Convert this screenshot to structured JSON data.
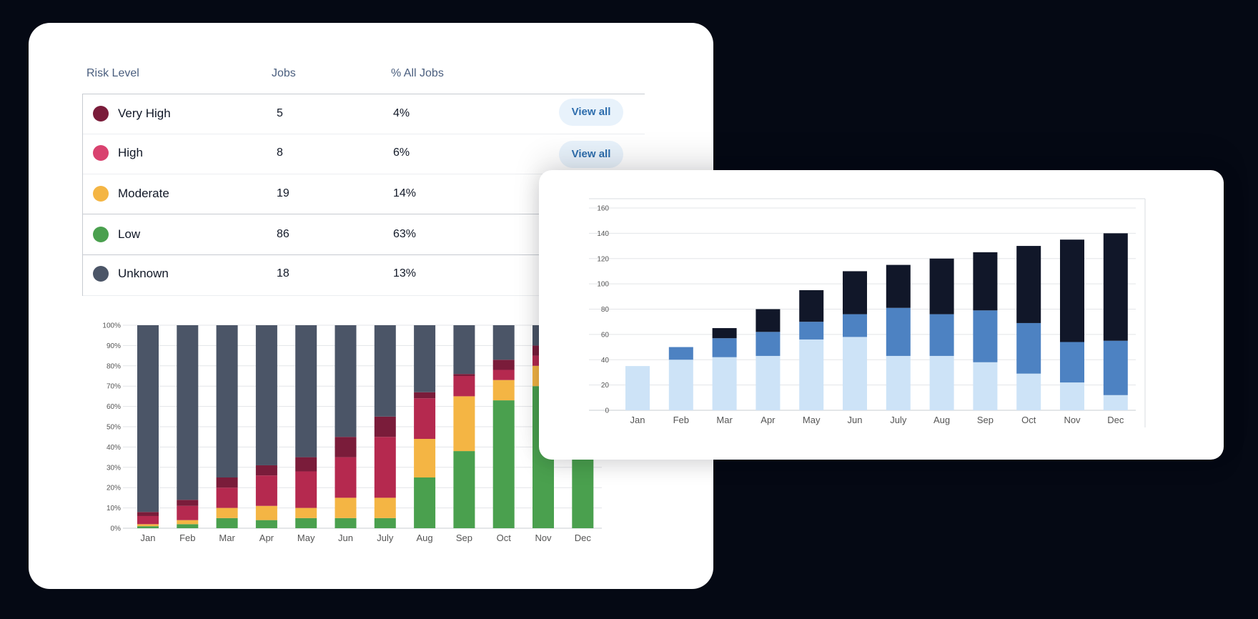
{
  "table": {
    "headers": {
      "risk": "Risk Level",
      "jobs": "Jobs",
      "pct": "% All Jobs"
    },
    "rows": [
      {
        "label": "Very High",
        "jobs": "5",
        "pct": "4%",
        "color": "#7a1c3a",
        "action": "View all"
      },
      {
        "label": "High",
        "jobs": "8",
        "pct": "6%",
        "color": "#d9426f",
        "action": "View all"
      },
      {
        "label": "Moderate",
        "jobs": "19",
        "pct": "14%",
        "color": "#f4b544"
      },
      {
        "label": "Low",
        "jobs": "86",
        "pct": "63%",
        "color": "#4aa04e"
      },
      {
        "label": "Unknown",
        "jobs": "18",
        "pct": "13%",
        "color": "#4b5567"
      }
    ]
  },
  "chart_data": [
    {
      "type": "bar",
      "stacked": true,
      "normalized": true,
      "categories": [
        "Jan",
        "Feb",
        "Mar",
        "Apr",
        "May",
        "Jun",
        "July",
        "Aug",
        "Sep",
        "Oct",
        "Nov",
        "Dec"
      ],
      "yticks": [
        "0%",
        "10%",
        "20%",
        "30%",
        "40%",
        "50%",
        "60%",
        "70%",
        "80%",
        "90%",
        "100%"
      ],
      "ylim": [
        0,
        100
      ],
      "grid": true,
      "series": [
        {
          "values": [
            1,
            2,
            5,
            4,
            5,
            5,
            5,
            25,
            38,
            63,
            70,
            70
          ],
          "color": "#4aa04e"
        },
        {
          "values": [
            1,
            2,
            5,
            7,
            5,
            10,
            10,
            19,
            27,
            10,
            10,
            10
          ],
          "color": "#f4b544"
        },
        {
          "values": [
            4,
            7,
            10,
            15,
            18,
            20,
            30,
            20,
            10,
            5,
            5,
            5
          ],
          "color": "#b5294f"
        },
        {
          "values": [
            2,
            3,
            5,
            5,
            7,
            10,
            10,
            3,
            1,
            5,
            5,
            5
          ],
          "color": "#7a1c3a"
        },
        {
          "values": [
            92,
            86,
            75,
            69,
            65,
            55,
            45,
            33,
            24,
            17,
            10,
            10
          ],
          "color": "#4b5567"
        }
      ]
    },
    {
      "type": "bar",
      "stacked": true,
      "categories": [
        "Jan",
        "Feb",
        "Mar",
        "Apr",
        "May",
        "Jun",
        "July",
        "Aug",
        "Sep",
        "Oct",
        "Nov",
        "Dec"
      ],
      "yticks": [
        0,
        20,
        40,
        60,
        80,
        100,
        120,
        140,
        160
      ],
      "ylim": [
        0,
        160
      ],
      "grid": true,
      "series": [
        {
          "values": [
            35,
            40,
            42,
            43,
            56,
            58,
            43,
            43,
            38,
            29,
            22,
            12
          ],
          "color": "#cde3f7"
        },
        {
          "values": [
            0,
            10,
            15,
            19,
            14,
            18,
            38,
            33,
            41,
            40,
            32,
            43
          ],
          "color": "#4d82c2"
        },
        {
          "values": [
            0,
            0,
            8,
            18,
            25,
            34,
            34,
            44,
            46,
            61,
            81,
            85
          ],
          "color": "#111729"
        }
      ]
    }
  ]
}
